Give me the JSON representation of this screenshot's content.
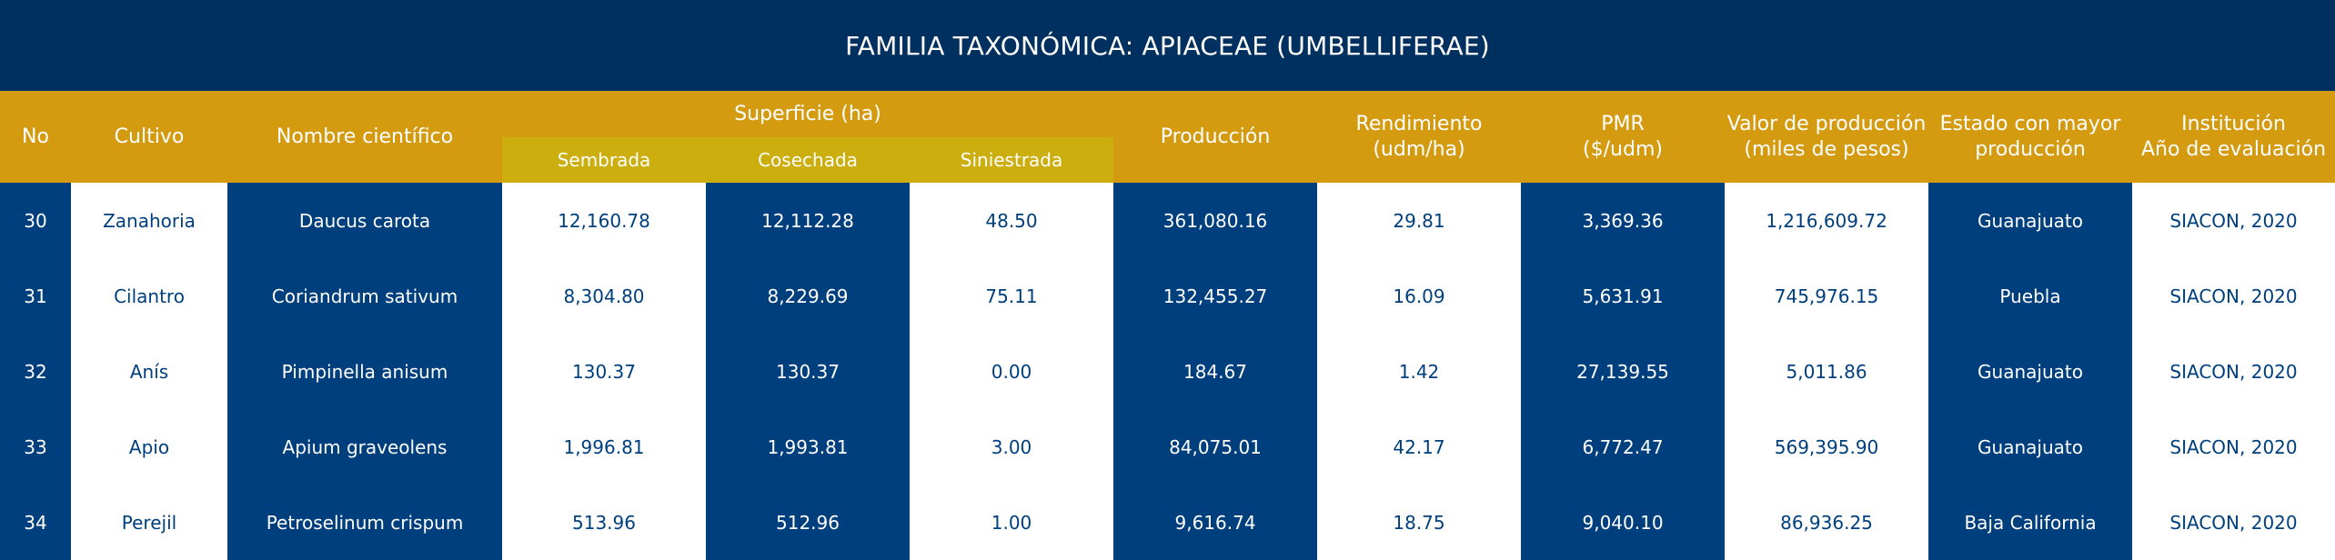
{
  "title": "FAMILIA TAXONÓMICA: APIACEAE (UMBELLIFERAE)",
  "headers": {
    "no": "No",
    "cultivo": "Cultivo",
    "nombre": "Nombre científico",
    "superficie": "Superficie (ha)",
    "sembrada": "Sembrada",
    "cosechada": "Cosechada",
    "siniestrada": "Siniestrada",
    "produccion": "Producción",
    "rendimiento_1": "Rendimiento",
    "rendimiento_2": "(udm/ha)",
    "pmr_1": "PMR",
    "pmr_2": "($/udm)",
    "valor_1": "Valor de producción",
    "valor_2": "(miles de pesos)",
    "estado_1": "Estado con mayor",
    "estado_2": "producción",
    "institucion_1": "Institución",
    "institucion_2": "Año de evaluación"
  },
  "rows": [
    {
      "no": "30",
      "cultivo": "Zanahoria",
      "nombre": "Daucus carota",
      "sembrada": "12,160.78",
      "cosechada": "12,112.28",
      "siniestrada": "48.50",
      "produccion": "361,080.16",
      "rendimiento": "29.81",
      "pmr": "3,369.36",
      "valor": "1,216,609.72",
      "estado": "Guanajuato",
      "institucion": "SIACON, 2020"
    },
    {
      "no": "31",
      "cultivo": "Cilantro",
      "nombre": "Coriandrum sativum",
      "sembrada": "8,304.80",
      "cosechada": "8,229.69",
      "siniestrada": "75.11",
      "produccion": "132,455.27",
      "rendimiento": "16.09",
      "pmr": "5,631.91",
      "valor": "745,976.15",
      "estado": "Puebla",
      "institucion": "SIACON, 2020"
    },
    {
      "no": "32",
      "cultivo": "Anís",
      "nombre": "Pimpinella anisum",
      "sembrada": "130.37",
      "cosechada": "130.37",
      "siniestrada": "0.00",
      "produccion": "184.67",
      "rendimiento": "1.42",
      "pmr": "27,139.55",
      "valor": "5,011.86",
      "estado": "Guanajuato",
      "institucion": "SIACON, 2020"
    },
    {
      "no": "33",
      "cultivo": "Apio",
      "nombre": "Apium graveolens",
      "sembrada": "1,996.81",
      "cosechada": "1,993.81",
      "siniestrada": "3.00",
      "produccion": "84,075.01",
      "rendimiento": "42.17",
      "pmr": "6,772.47",
      "valor": "569,395.90",
      "estado": "Guanajuato",
      "institucion": "SIACON, 2020"
    },
    {
      "no": "34",
      "cultivo": "Perejil",
      "nombre": "Petroselinum crispum",
      "sembrada": "513.96",
      "cosechada": "512.96",
      "siniestrada": "1.00",
      "produccion": "9,616.74",
      "rendimiento": "18.75",
      "pmr": "9,040.10",
      "valor": "86,936.25",
      "estado": "Baja California",
      "institucion": "SIACON, 2020"
    }
  ]
}
